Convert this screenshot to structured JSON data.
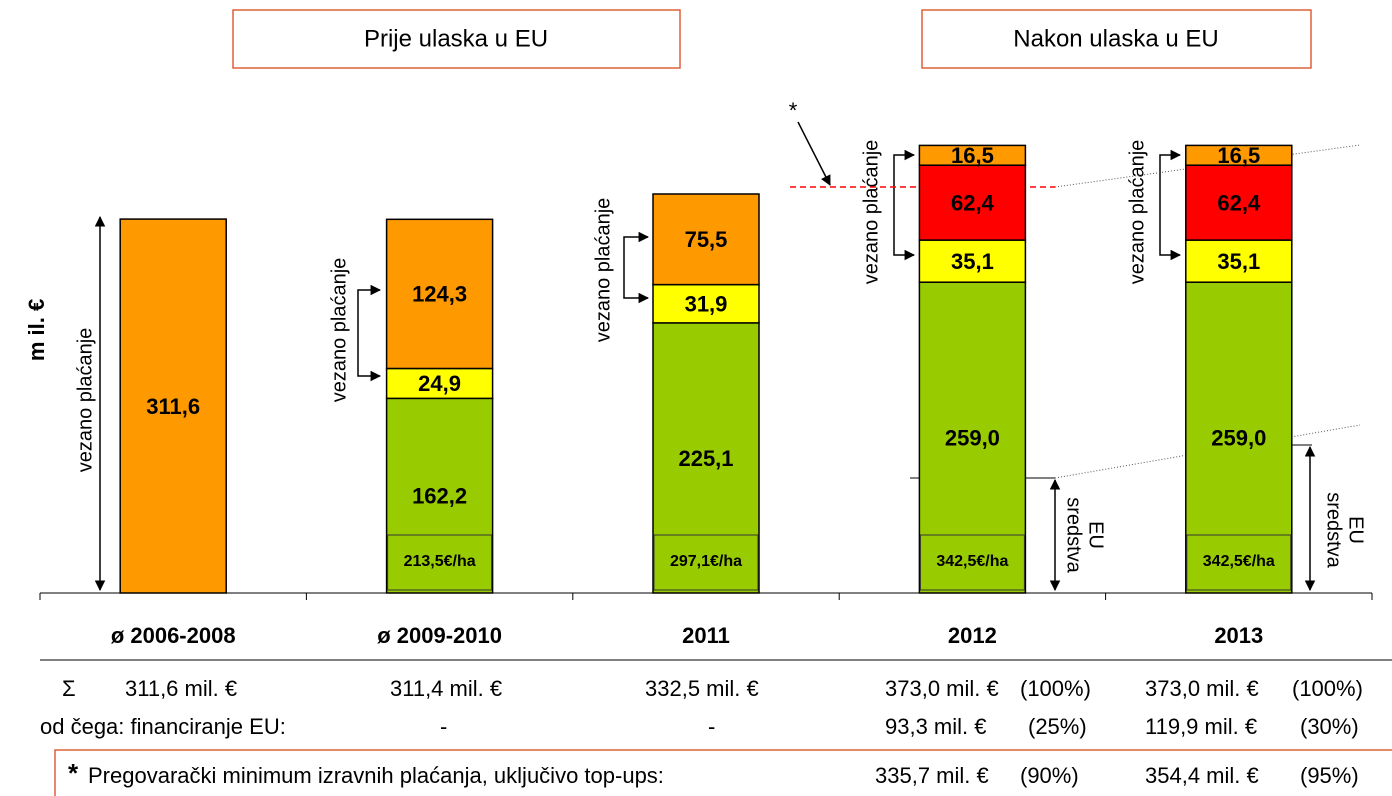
{
  "chart_data": {
    "type": "bar",
    "header_left": "Prije ulaska u EU",
    "header_right": "Nakon ulaska u EU",
    "y_label": "m il. €",
    "categories": [
      "ø 2006-2008",
      "ø 2009-2010",
      "2011",
      "2012",
      "2013"
    ],
    "ylim": [
      0,
      400
    ],
    "series": [
      {
        "color": "#99cc00",
        "values": [
          null,
          162.2,
          225.1,
          259.0,
          259.0
        ],
        "value_labels": [
          null,
          "162,2",
          "225,1",
          "259,0",
          "259,0"
        ]
      },
      {
        "color": "#ffff00",
        "values": [
          null,
          24.9,
          31.9,
          35.1,
          35.1
        ],
        "value_labels": [
          null,
          "24,9",
          "31,9",
          "35,1",
          "35,1"
        ]
      },
      {
        "color": "#ff0000",
        "values": [
          null,
          null,
          null,
          62.4,
          62.4
        ],
        "value_labels": [
          null,
          null,
          null,
          "62,4",
          "62,4"
        ]
      },
      {
        "color": "#ff9900",
        "values": [
          311.6,
          124.3,
          75.5,
          16.5,
          16.5
        ],
        "value_labels": [
          "311,6",
          "124,3",
          "75,5",
          "16,5",
          "16,5"
        ]
      }
    ],
    "per_ha_labels": [
      null,
      "213,5€/ha",
      "297,1€/ha",
      "342,5€/ha",
      "342,5€/ha"
    ],
    "coupled_label": "vezano plaćanje",
    "eu_label": [
      "EU",
      "sredstva"
    ],
    "asterisk": "*"
  },
  "summary": {
    "sum_row": [
      "Σ",
      "311,6 mil. €",
      "311,4 mil. €",
      "332,5 mil. €",
      "373,0 mil. €",
      "(100%)",
      "373,0 mil. €",
      "(100%)"
    ],
    "eu_row": [
      "od čega: financiranje EU:",
      "-",
      "-",
      "93,3 mil. €",
      "(25%)",
      "119,9 mil. €",
      "(30%)"
    ],
    "footnote": [
      "*",
      "Pregovarački minimum izravnih plaćanja, uključivo top-ups:",
      "335,7 mil. €",
      "(90%)",
      "354,4 mil. €",
      "(95%)"
    ]
  }
}
